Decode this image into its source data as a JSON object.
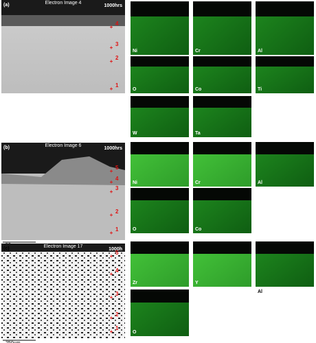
{
  "panels": [
    {
      "label": "(a)",
      "title": "Electron Image 4",
      "time": "1000hrs",
      "points": [
        "4",
        "3",
        "2",
        "1"
      ],
      "maps": [
        {
          "label": "Ni"
        },
        {
          "label": "Cr"
        },
        {
          "label": "Al"
        },
        {
          "label": "O"
        },
        {
          "label": "Co"
        },
        {
          "label": "Ti"
        },
        {
          "label": "W"
        },
        {
          "label": "Ta"
        }
      ]
    },
    {
      "label": "(b)",
      "title": "Electron Image 6",
      "time": "1000hrs",
      "scale": "50µm",
      "points": [
        "5",
        "4",
        "3",
        "2",
        "1"
      ],
      "maps": [
        {
          "label": "Ni"
        },
        {
          "label": "Cr"
        },
        {
          "label": "Al"
        },
        {
          "label": "O"
        },
        {
          "label": "Co"
        }
      ]
    },
    {
      "label": "(c)",
      "title": "Electron Image 17",
      "time": "1000h",
      "scale": "250µm",
      "points": [
        "5",
        "4",
        "3",
        "2",
        "1"
      ],
      "maps": [
        {
          "label": "Zr"
        },
        {
          "label": "Y"
        },
        {
          "label": "Al"
        },
        {
          "label": "O"
        }
      ]
    }
  ]
}
